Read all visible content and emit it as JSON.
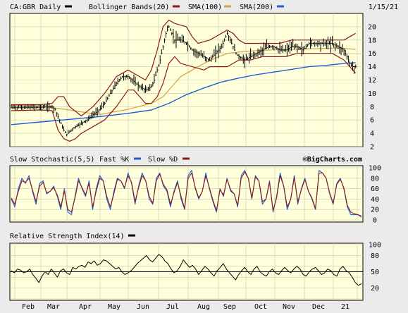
{
  "header": {
    "ticker": "CA:GBR Daily",
    "bollinger_label": "Bollinger Bands(20)",
    "sma100_label": "SMA(100)",
    "sma200_label": "SMA(200)",
    "date": "1/15/21"
  },
  "stochastic": {
    "title": "Slow Stochastic(5,5)",
    "fast_label": "Fast %K",
    "slow_label": "Slow %D",
    "watermark": "©BigCharts.com"
  },
  "rsi": {
    "title": "Relative Strength Index(14)"
  },
  "colors": {
    "price": "#000000",
    "bollinger": "#8b1a1a",
    "sma100": "#d4a24c",
    "sma200": "#1f5fd6",
    "fastk": "#1f5fd6",
    "slowd": "#8b1a1a",
    "plot_bg": "#ffffd9",
    "page_bg": "#ebebeb"
  },
  "x_axis": {
    "months": [
      "Feb",
      "Mar",
      "Apr",
      "May",
      "Jun",
      "Jul",
      "Aug",
      "Sep",
      "Oct",
      "Nov",
      "Dec",
      "21"
    ]
  },
  "chart_data": [
    {
      "type": "line",
      "name": "price-panel",
      "x_range": [
        0,
        240
      ],
      "ylim": [
        2,
        22
      ],
      "y_ticks": [
        2,
        4,
        6,
        8,
        10,
        12,
        14,
        16,
        18,
        20
      ],
      "grid": true,
      "price": [
        [
          0,
          7.9
        ],
        [
          10,
          7.9
        ],
        [
          20,
          7.9
        ],
        [
          28,
          8
        ],
        [
          30,
          7.6
        ],
        [
          32,
          6.5
        ],
        [
          34,
          5.5
        ],
        [
          36,
          4.5
        ],
        [
          38,
          3.8
        ],
        [
          40,
          4.3
        ],
        [
          44,
          5
        ],
        [
          48,
          5.5
        ],
        [
          52,
          6
        ],
        [
          56,
          6.8
        ],
        [
          60,
          7.5
        ],
        [
          64,
          8.5
        ],
        [
          68,
          10
        ],
        [
          72,
          11.5
        ],
        [
          76,
          12.5
        ],
        [
          80,
          12.5
        ],
        [
          84,
          11.8
        ],
        [
          88,
          11
        ],
        [
          92,
          10.5
        ],
        [
          96,
          11
        ],
        [
          98,
          12
        ],
        [
          100,
          13.5
        ],
        [
          102,
          15
        ],
        [
          104,
          17
        ],
        [
          106,
          19
        ],
        [
          108,
          20
        ],
        [
          110,
          19
        ],
        [
          112,
          18
        ],
        [
          116,
          18
        ],
        [
          120,
          17.5
        ],
        [
          124,
          16.5
        ],
        [
          128,
          16
        ],
        [
          132,
          15.5
        ],
        [
          136,
          15
        ],
        [
          140,
          16
        ],
        [
          144,
          17
        ],
        [
          148,
          19
        ],
        [
          150,
          18
        ],
        [
          152,
          17
        ],
        [
          154,
          16
        ],
        [
          156,
          15.5
        ],
        [
          160,
          15
        ],
        [
          164,
          15.5
        ],
        [
          168,
          16
        ],
        [
          172,
          16.5
        ],
        [
          176,
          17
        ],
        [
          180,
          17
        ],
        [
          184,
          16.5
        ],
        [
          188,
          16.5
        ],
        [
          192,
          17
        ],
        [
          196,
          17
        ],
        [
          200,
          16.5
        ],
        [
          204,
          17.5
        ],
        [
          208,
          17.5
        ],
        [
          212,
          17.5
        ],
        [
          216,
          17.5
        ],
        [
          220,
          17.5
        ],
        [
          224,
          17
        ],
        [
          228,
          16.5
        ],
        [
          230,
          15.5
        ],
        [
          232,
          14.5
        ],
        [
          234,
          14
        ],
        [
          236,
          14
        ]
      ],
      "bollinger_upper": [
        [
          0,
          8.3
        ],
        [
          20,
          8.3
        ],
        [
          28,
          8.5
        ],
        [
          30,
          9
        ],
        [
          32,
          9.5
        ],
        [
          36,
          9.5
        ],
        [
          40,
          8
        ],
        [
          48,
          6.6
        ],
        [
          56,
          8
        ],
        [
          64,
          10
        ],
        [
          72,
          12.5
        ],
        [
          80,
          13.5
        ],
        [
          84,
          13
        ],
        [
          92,
          12
        ],
        [
          96,
          13.5
        ],
        [
          100,
          16.5
        ],
        [
          104,
          20
        ],
        [
          108,
          21
        ],
        [
          112,
          20.5
        ],
        [
          120,
          20
        ],
        [
          124,
          18.5
        ],
        [
          128,
          17.5
        ],
        [
          136,
          18
        ],
        [
          140,
          18.5
        ],
        [
          144,
          19
        ],
        [
          148,
          19.5
        ],
        [
          152,
          19
        ],
        [
          156,
          18
        ],
        [
          160,
          17.5
        ],
        [
          168,
          17.5
        ],
        [
          176,
          17.5
        ],
        [
          184,
          17.5
        ],
        [
          192,
          18
        ],
        [
          200,
          18
        ],
        [
          208,
          18
        ],
        [
          216,
          18
        ],
        [
          224,
          18
        ],
        [
          228,
          18
        ],
        [
          236,
          19
        ]
      ],
      "bollinger_lower": [
        [
          0,
          7.4
        ],
        [
          20,
          7.5
        ],
        [
          28,
          7.4
        ],
        [
          30,
          6
        ],
        [
          32,
          4.5
        ],
        [
          36,
          3.2
        ],
        [
          40,
          2.8
        ],
        [
          44,
          3.2
        ],
        [
          48,
          4
        ],
        [
          56,
          5
        ],
        [
          64,
          6
        ],
        [
          72,
          8
        ],
        [
          80,
          10.5
        ],
        [
          84,
          10.5
        ],
        [
          88,
          9.5
        ],
        [
          92,
          8.5
        ],
        [
          96,
          8.5
        ],
        [
          100,
          9.5
        ],
        [
          104,
          11.5
        ],
        [
          108,
          14.5
        ],
        [
          112,
          15.5
        ],
        [
          116,
          14.5
        ],
        [
          124,
          14
        ],
        [
          132,
          13.5
        ],
        [
          136,
          14
        ],
        [
          140,
          14
        ],
        [
          148,
          14
        ],
        [
          152,
          14.5
        ],
        [
          156,
          15
        ],
        [
          164,
          15
        ],
        [
          172,
          15.5
        ],
        [
          180,
          15.5
        ],
        [
          188,
          15.5
        ],
        [
          196,
          16
        ],
        [
          204,
          16
        ],
        [
          212,
          16
        ],
        [
          220,
          16
        ],
        [
          228,
          15
        ],
        [
          236,
          13
        ]
      ],
      "sma100": [
        [
          0,
          8.2
        ],
        [
          20,
          8.1
        ],
        [
          40,
          7.5
        ],
        [
          60,
          6.8
        ],
        [
          80,
          7.6
        ],
        [
          96,
          8.5
        ],
        [
          104,
          9.5
        ],
        [
          110,
          11
        ],
        [
          116,
          12.5
        ],
        [
          124,
          13.5
        ],
        [
          132,
          14.5
        ],
        [
          140,
          15.3
        ],
        [
          148,
          16
        ],
        [
          160,
          16.3
        ],
        [
          176,
          16.5
        ],
        [
          192,
          16.6
        ],
        [
          208,
          16.7
        ],
        [
          224,
          16.8
        ],
        [
          236,
          16.6
        ]
      ],
      "sma200": [
        [
          0,
          5.3
        ],
        [
          20,
          5.7
        ],
        [
          40,
          6.1
        ],
        [
          60,
          6.5
        ],
        [
          80,
          7
        ],
        [
          96,
          7.5
        ],
        [
          108,
          8.5
        ],
        [
          120,
          9.8
        ],
        [
          132,
          10.8
        ],
        [
          144,
          11.7
        ],
        [
          156,
          12.3
        ],
        [
          168,
          12.8
        ],
        [
          180,
          13.2
        ],
        [
          192,
          13.6
        ],
        [
          204,
          14
        ],
        [
          216,
          14.2
        ],
        [
          228,
          14.5
        ],
        [
          236,
          14.6
        ]
      ]
    },
    {
      "type": "line",
      "name": "slow-stochastic",
      "ylim": [
        0,
        100
      ],
      "y_ticks": [
        0,
        20,
        40,
        60,
        80,
        100
      ],
      "series": [
        {
          "name": "Fast %K",
          "values": [
            40,
            25,
            60,
            80,
            70,
            85,
            55,
            30,
            70,
            75,
            50,
            55,
            65,
            45,
            20,
            60,
            15,
            10,
            45,
            80,
            60,
            45,
            75,
            20,
            60,
            85,
            75,
            40,
            20,
            55,
            80,
            75,
            60,
            90,
            70,
            30,
            65,
            90,
            75,
            40,
            30,
            80,
            90,
            65,
            55,
            25,
            55,
            75,
            40,
            20,
            85,
            95,
            60,
            40,
            55,
            90,
            60,
            35,
            15,
            60,
            45,
            80,
            55,
            50,
            25,
            85,
            95,
            80,
            40,
            85,
            75,
            30,
            40,
            75,
            15,
            45,
            90,
            65,
            20,
            40,
            85,
            30,
            60,
            80,
            55,
            40,
            20,
            95,
            90,
            80,
            50,
            30,
            70,
            80,
            60,
            25,
            10,
            10,
            10,
            5
          ]
        },
        {
          "name": "Slow %D",
          "values": [
            42,
            30,
            55,
            75,
            72,
            80,
            58,
            35,
            65,
            72,
            52,
            55,
            62,
            48,
            25,
            55,
            20,
            15,
            42,
            75,
            62,
            48,
            70,
            25,
            55,
            80,
            75,
            45,
            25,
            50,
            78,
            75,
            62,
            85,
            72,
            35,
            62,
            85,
            75,
            45,
            32,
            75,
            88,
            68,
            58,
            30,
            52,
            72,
            45,
            22,
            80,
            90,
            62,
            42,
            55,
            85,
            62,
            38,
            18,
            58,
            48,
            78,
            58,
            50,
            28,
            80,
            92,
            80,
            42,
            82,
            75,
            35,
            40,
            72,
            18,
            42,
            85,
            65,
            25,
            40,
            82,
            35,
            58,
            78,
            55,
            42,
            22,
            90,
            90,
            80,
            52,
            32,
            68,
            78,
            62,
            28,
            15,
            12,
            10,
            8
          ]
        }
      ]
    },
    {
      "type": "line",
      "name": "rsi",
      "ylim": [
        0,
        100
      ],
      "y_ticks": [
        0,
        20,
        40,
        50,
        60,
        80,
        100
      ],
      "reference_line": 50,
      "values": [
        52,
        48,
        55,
        53,
        48,
        50,
        55,
        45,
        38,
        30,
        42,
        50,
        45,
        55,
        48,
        40,
        52,
        55,
        48,
        45,
        58,
        55,
        60,
        62,
        58,
        68,
        65,
        70,
        62,
        65,
        72,
        70,
        65,
        60,
        55,
        58,
        50,
        45,
        48,
        52,
        58,
        65,
        70,
        75,
        80,
        72,
        68,
        75,
        82,
        78,
        70,
        65,
        55,
        48,
        52,
        60,
        72,
        65,
        58,
        62,
        55,
        45,
        52,
        60,
        55,
        48,
        42,
        52,
        58,
        65,
        55,
        48,
        42,
        35,
        45,
        52,
        58,
        50,
        45,
        55,
        60,
        50,
        45,
        42,
        50,
        55,
        48,
        45,
        52,
        58,
        52,
        48,
        55,
        60,
        55,
        45,
        42,
        50,
        55,
        58,
        52,
        45,
        48,
        55,
        52,
        45,
        42,
        55,
        60,
        52,
        48,
        40,
        30,
        25,
        28
      ]
    }
  ]
}
